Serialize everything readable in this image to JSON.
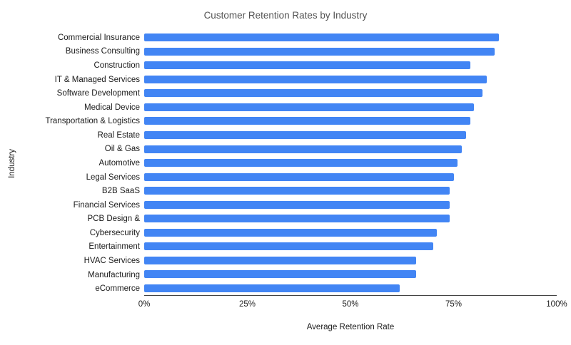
{
  "colors": {
    "bar": "#4285f4",
    "axis_line": "#424242",
    "title_text": "#535353",
    "label_text": "#1a1a1a",
    "background": "#ffffff"
  },
  "chart_data": {
    "type": "bar",
    "orientation": "horizontal",
    "title": "Customer Retention Rates by Industry",
    "xlabel": "Average Retention Rate",
    "ylabel": "Industry",
    "xlim": [
      0,
      100
    ],
    "x_tick_labels": [
      "0%",
      "25%",
      "50%",
      "75%",
      "100%"
    ],
    "x_tick_values": [
      0,
      25,
      50,
      75,
      100
    ],
    "grid": false,
    "legend": "none",
    "unit": "%",
    "categories": [
      "Commercial Insurance",
      "Business Consulting",
      "Construction",
      "IT & Managed Services",
      "Software Development",
      "Medical Device",
      "Transportation & Logistics",
      "Real Estate",
      "Oil & Gas",
      "Automotive",
      "Legal Services",
      "B2B SaaS",
      "Financial Services",
      "PCB Design &",
      "Cybersecurity",
      "Entertainment",
      "HVAC Services",
      "Manufacturing",
      "eCommerce"
    ],
    "values": [
      86,
      85,
      79,
      83,
      82,
      80,
      79,
      78,
      77,
      76,
      75,
      74,
      74,
      74,
      71,
      70,
      66,
      66,
      62
    ]
  }
}
